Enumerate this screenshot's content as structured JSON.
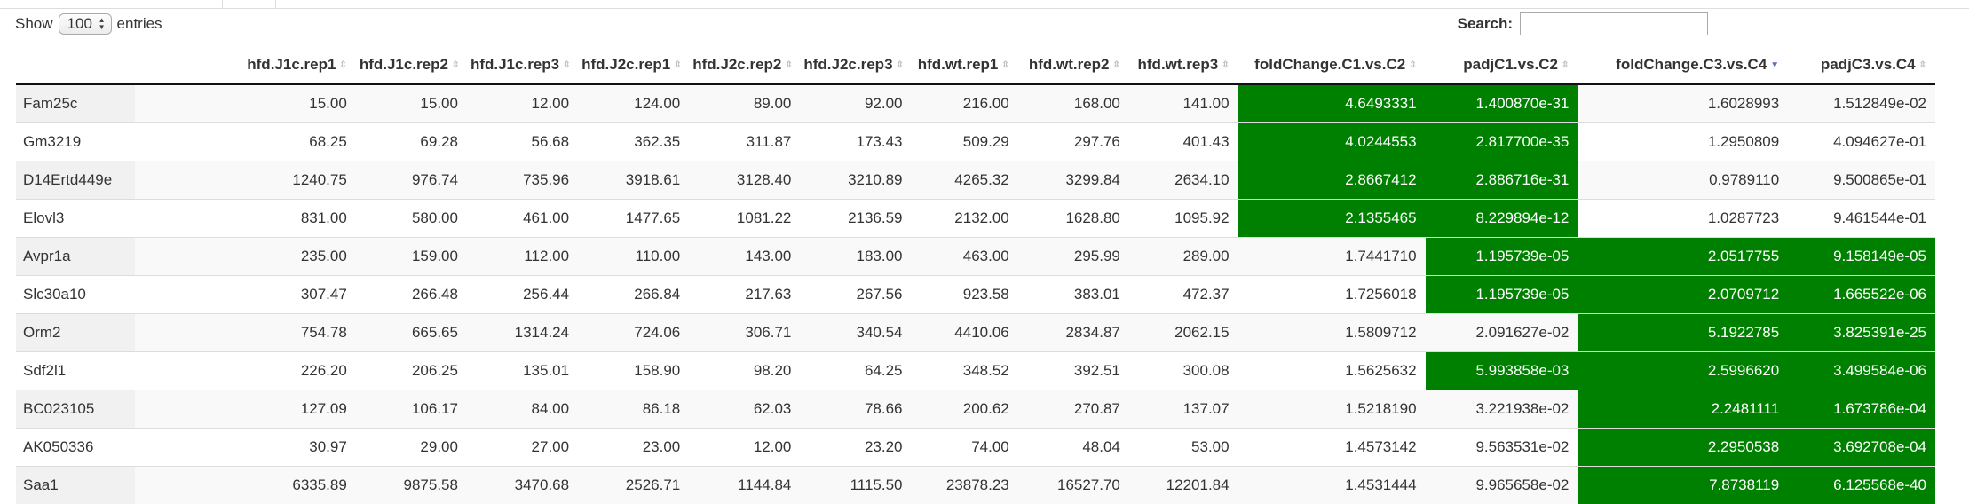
{
  "length_menu": {
    "show_label": "Show",
    "value": "100",
    "entries_label": "entries"
  },
  "search": {
    "label": "Search:",
    "value": ""
  },
  "highlight_color": "#008000",
  "columns": [
    "",
    "hfd.J1c.rep1",
    "hfd.J1c.rep2",
    "hfd.J1c.rep3",
    "hfd.J2c.rep1",
    "hfd.J2c.rep2",
    "hfd.J2c.rep3",
    "hfd.wt.rep1",
    "hfd.wt.rep2",
    "hfd.wt.rep3",
    "foldChange.C1.vs.C2",
    "padjC1.vs.C2",
    "foldChange.C3.vs.C4",
    "padjC3.vs.C4"
  ],
  "sorted_column": 12,
  "rows": [
    {
      "cells": [
        "Fam25c",
        "15.00",
        "15.00",
        "12.00",
        "124.00",
        "89.00",
        "92.00",
        "216.00",
        "168.00",
        "141.00",
        "4.6493331",
        "1.400870e-31",
        "1.6028993",
        "1.512849e-02"
      ],
      "highlight": [
        10,
        11
      ]
    },
    {
      "cells": [
        "Gm3219",
        "68.25",
        "69.28",
        "56.68",
        "362.35",
        "311.87",
        "173.43",
        "509.29",
        "297.76",
        "401.43",
        "4.0244553",
        "2.817700e-35",
        "1.2950809",
        "4.094627e-01"
      ],
      "highlight": [
        10,
        11
      ]
    },
    {
      "cells": [
        "D14Ertd449e",
        "1240.75",
        "976.74",
        "735.96",
        "3918.61",
        "3128.40",
        "3210.89",
        "4265.32",
        "3299.84",
        "2634.10",
        "2.8667412",
        "2.886716e-31",
        "0.9789110",
        "9.500865e-01"
      ],
      "highlight": [
        10,
        11
      ]
    },
    {
      "cells": [
        "Elovl3",
        "831.00",
        "580.00",
        "461.00",
        "1477.65",
        "1081.22",
        "2136.59",
        "2132.00",
        "1628.80",
        "1095.92",
        "2.1355465",
        "8.229894e-12",
        "1.0287723",
        "9.461544e-01"
      ],
      "highlight": [
        10,
        11
      ]
    },
    {
      "cells": [
        "Avpr1a",
        "235.00",
        "159.00",
        "112.00",
        "110.00",
        "143.00",
        "183.00",
        "463.00",
        "295.99",
        "289.00",
        "1.7441710",
        "1.195739e-05",
        "2.0517755",
        "9.158149e-05"
      ],
      "highlight": [
        11,
        12,
        13
      ]
    },
    {
      "cells": [
        "Slc30a10",
        "307.47",
        "266.48",
        "256.44",
        "266.84",
        "217.63",
        "267.56",
        "923.58",
        "383.01",
        "472.37",
        "1.7256018",
        "1.195739e-05",
        "2.0709712",
        "1.665522e-06"
      ],
      "highlight": [
        11,
        12,
        13
      ]
    },
    {
      "cells": [
        "Orm2",
        "754.78",
        "665.65",
        "1314.24",
        "724.06",
        "306.71",
        "340.54",
        "4410.06",
        "2834.87",
        "2062.15",
        "1.5809712",
        "2.091627e-02",
        "5.1922785",
        "3.825391e-25"
      ],
      "highlight": [
        12,
        13
      ]
    },
    {
      "cells": [
        "Sdf2l1",
        "226.20",
        "206.25",
        "135.01",
        "158.90",
        "98.20",
        "64.25",
        "348.52",
        "392.51",
        "300.08",
        "1.5625632",
        "5.993858e-03",
        "2.5996620",
        "3.499584e-06"
      ],
      "highlight": [
        11,
        12,
        13
      ]
    },
    {
      "cells": [
        "BC023105",
        "127.09",
        "106.17",
        "84.00",
        "86.18",
        "62.03",
        "78.66",
        "200.62",
        "270.87",
        "137.07",
        "1.5218190",
        "3.221938e-02",
        "2.2481111",
        "1.673786e-04"
      ],
      "highlight": [
        12,
        13
      ]
    },
    {
      "cells": [
        "AK050336",
        "30.97",
        "29.00",
        "27.00",
        "23.00",
        "12.00",
        "23.20",
        "74.00",
        "48.04",
        "53.00",
        "1.4573142",
        "9.563531e-02",
        "2.2950538",
        "3.692708e-04"
      ],
      "highlight": [
        12,
        13
      ]
    },
    {
      "cells": [
        "Saa1",
        "6335.89",
        "9875.58",
        "3470.68",
        "2526.71",
        "1144.84",
        "1115.50",
        "23878.23",
        "16527.70",
        "12201.84",
        "1.4531444",
        "9.965658e-02",
        "7.8738119",
        "6.125568e-40"
      ],
      "highlight": [
        12,
        13
      ]
    }
  ]
}
